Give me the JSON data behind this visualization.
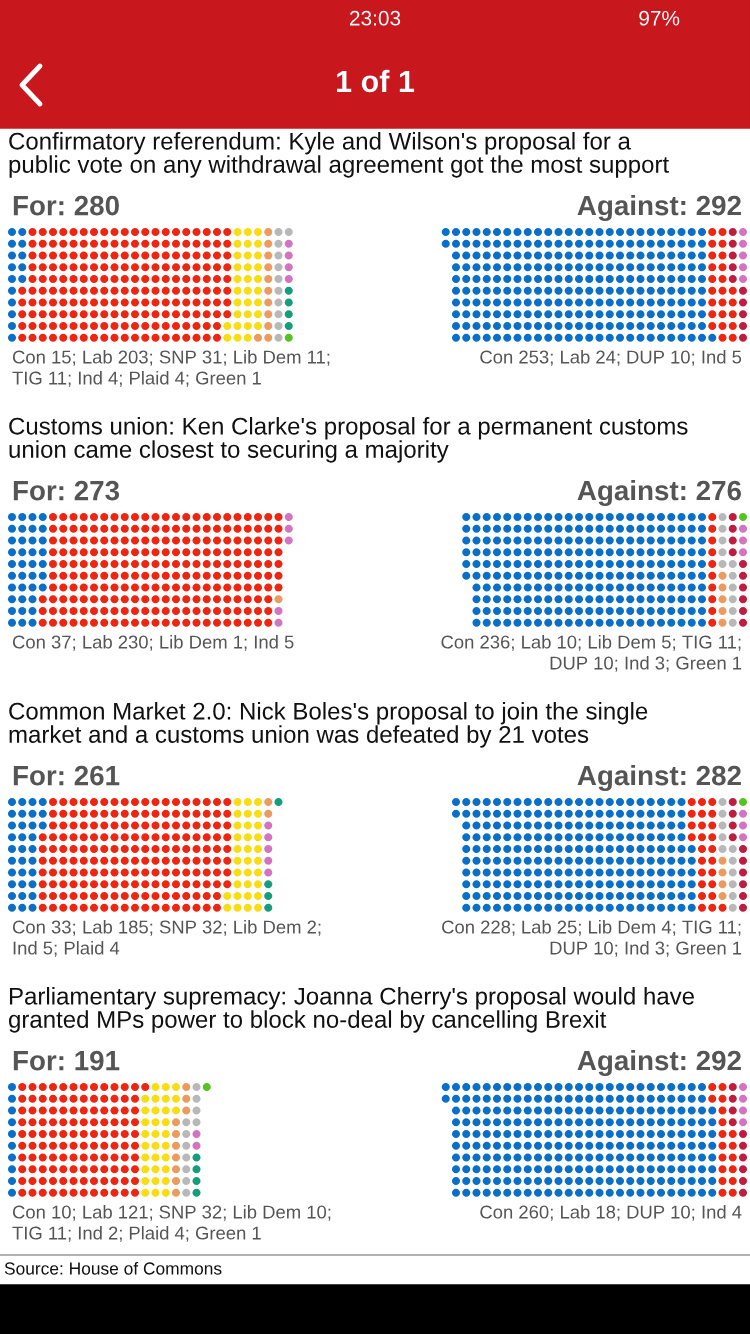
{
  "chart_data": [
    {
      "type": "other",
      "title": "Confirmatory referendum: Kyle and Wilson's proposal for a\npublic vote on any withdrawal agreement got the most support",
      "categories": [
        "Con",
        "Lab",
        "SNP",
        "Lib Dem",
        "TIG",
        "DUP",
        "Ind",
        "Plaid",
        "Green"
      ],
      "colors": [
        "#0a6fc8",
        "#ee2511",
        "#f8dc14",
        "#ec9a5e",
        "#b8b8b8",
        "#bf1c40",
        "#d473c2",
        "#149e7a",
        "#55c420"
      ],
      "series": [
        {
          "name": "For: 280",
          "values": [
            15,
            203,
            31,
            11,
            11,
            null,
            4,
            4,
            1
          ],
          "value_labels": [
            "15;",
            "203;",
            "31;",
            "11;",
            "11;",
            null,
            "4;",
            "4;",
            "1"
          ]
        },
        {
          "name": "Against: 292",
          "values": [
            253,
            24,
            null,
            null,
            null,
            10,
            5,
            null,
            null
          ],
          "value_labels": [
            "253;",
            "24;",
            null,
            null,
            null,
            "10;",
            "5",
            null,
            null
          ]
        }
      ],
      "annotations": [
        "1 of 1",
        "23:03",
        "97%"
      ]
    },
    {
      "type": "other",
      "title": "Customs union: Ken Clarke's proposal for a permanent customs\nunion came closest to securing a majority",
      "categories": [
        "Con",
        "Lab",
        "Lib Dem",
        "TIG",
        "DUP",
        "Ind",
        "Green"
      ],
      "colors": [
        "#0a6fc8",
        "#ee2511",
        "#ec9a5e",
        "#b8b8b8",
        "#bf1c40",
        "#d473c2",
        "#55c420"
      ],
      "series": [
        {
          "name": "For: 273",
          "values": [
            37,
            230,
            1,
            null,
            null,
            5,
            null
          ],
          "value_labels": [
            "37;",
            "230;",
            "1;",
            null,
            null,
            "5",
            null
          ]
        },
        {
          "name": "Against: 276",
          "values": [
            236,
            10,
            5,
            11,
            10,
            3,
            1
          ],
          "value_labels": [
            "236;",
            "10;",
            "5;",
            "11;",
            "10;",
            "3;",
            "1"
          ]
        }
      ]
    },
    {
      "type": "other",
      "title": "Common Market 2.0: Nick Boles's proposal to join the single\nmarket and a customs union was defeated by 21 votes",
      "categories": [
        "Con",
        "Lab",
        "SNP",
        "Lib Dem",
        "TIG",
        "DUP",
        "Ind",
        "Plaid",
        "Green"
      ],
      "colors": [
        "#0a6fc8",
        "#ee2511",
        "#f8dc14",
        "#ec9a5e",
        "#b8b8b8",
        "#bf1c40",
        "#d473c2",
        "#149e7a",
        "#55c420"
      ],
      "series": [
        {
          "name": "For: 261",
          "values": [
            33,
            185,
            32,
            2,
            null,
            null,
            5,
            4,
            null
          ],
          "value_labels": [
            "33;",
            "185;",
            "32;",
            "2;",
            null,
            null,
            "5;",
            "4",
            null
          ]
        },
        {
          "name": "Against: 282",
          "values": [
            228,
            25,
            null,
            4,
            11,
            10,
            3,
            null,
            1
          ],
          "value_labels": [
            "228;",
            "25;",
            null,
            "4;",
            "11;",
            "10;",
            "3;",
            null,
            "1"
          ]
        }
      ]
    },
    {
      "type": "other",
      "title": "Parliamentary supremacy: Joanna Cherry's proposal would have\ngranted MPs power to block no-deal by cancelling Brexit",
      "categories": [
        "Con",
        "Lab",
        "SNP",
        "Lib Dem",
        "TIG",
        "DUP",
        "Ind",
        "Plaid",
        "Green"
      ],
      "colors": [
        "#0a6fc8",
        "#ee2511",
        "#f8dc14",
        "#ec9a5e",
        "#b8b8b8",
        "#bf1c40",
        "#d473c2",
        "#149e7a",
        "#55c420"
      ],
      "series": [
        {
          "name": "For: 191",
          "values": [
            10,
            121,
            32,
            10,
            11,
            null,
            2,
            4,
            1
          ],
          "value_labels": [
            "10;",
            "121;",
            "32;",
            "10;",
            "11;",
            null,
            "2;",
            "4;",
            "1"
          ]
        },
        {
          "name": "Against: 292",
          "values": [
            260,
            18,
            null,
            null,
            null,
            10,
            4,
            null,
            null
          ],
          "value_labels": [
            "260;",
            "18;",
            null,
            null,
            null,
            "10;",
            "4",
            null,
            null
          ]
        }
      ],
      "annotations": [
        "Source: House of Commons"
      ]
    }
  ]
}
